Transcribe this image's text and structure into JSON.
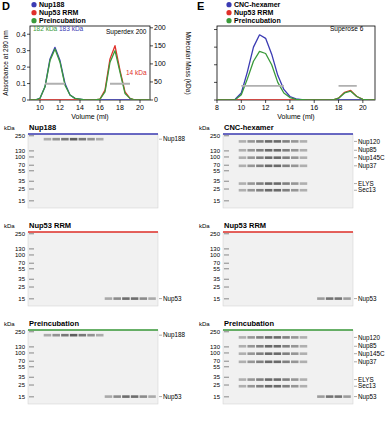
{
  "chart_data": [
    {
      "type": "line",
      "title": "D",
      "x_label": "Volume (ml)",
      "y_label": "Absorbance at 280 nm",
      "y2_label": "Molecular Mass (kDa)",
      "legend": "upper left",
      "x": [
        9,
        9.5,
        10,
        10.5,
        11,
        11.5,
        12,
        12.5,
        13,
        13.5,
        14,
        14.5,
        15,
        15.5,
        16,
        16.5,
        17,
        17.5,
        18,
        18.5,
        19,
        19.5,
        20,
        20.5,
        21
      ],
      "xlim": [
        9,
        21
      ],
      "xticks": [
        10,
        12,
        14,
        16,
        18,
        20
      ],
      "ylim": [
        0,
        0.45
      ],
      "yticks": [
        0,
        0.1,
        0.2,
        0.3,
        0.4
      ],
      "y2lim": [
        0,
        205
      ],
      "y2ticks": [
        0,
        50,
        100,
        150,
        200
      ],
      "series": [
        {
          "name": "Nup188",
          "color": "#3b3bb3",
          "values": [
            0,
            0,
            0.01,
            0.08,
            0.25,
            0.32,
            0.24,
            0.1,
            0.03,
            0.01,
            0.005,
            0,
            0,
            0,
            0,
            0,
            0,
            0,
            0,
            0,
            0,
            0,
            0,
            0,
            0
          ]
        },
        {
          "name": "Nup53 RRM",
          "color": "#e0302a",
          "values": [
            0,
            0,
            0,
            0,
            0,
            0,
            0,
            0,
            0,
            0,
            0,
            0,
            0,
            0,
            0.005,
            0.06,
            0.25,
            0.33,
            0.18,
            0.05,
            0.01,
            0,
            0,
            0,
            0
          ]
        },
        {
          "name": "Preincubation",
          "color": "#3a9a3a",
          "values": [
            0,
            0,
            0.01,
            0.08,
            0.24,
            0.31,
            0.23,
            0.09,
            0.03,
            0.01,
            0.005,
            0,
            0,
            0,
            0.005,
            0.05,
            0.23,
            0.3,
            0.17,
            0.04,
            0.01,
            0,
            0,
            0,
            0
          ]
        },
        {
          "color": "#b0b0b0",
          "axis": "y2",
          "values": [
            null,
            null,
            null,
            45,
            45,
            45,
            45,
            45,
            null,
            null,
            null,
            null,
            null,
            null,
            null,
            null,
            45,
            45,
            45,
            45,
            45,
            null,
            null,
            null,
            null
          ]
        }
      ],
      "annotations": [
        {
          "text": "182 kDa",
          "x": 9.3,
          "y": 0.42,
          "color": "#3a9a3a"
        },
        {
          "text": "183 kDa",
          "x": 11.9,
          "y": 0.42,
          "color": "#3b3bb3"
        },
        {
          "text": "14 kDa",
          "x": 18.6,
          "y": 0.15,
          "color": "#e0302a"
        },
        {
          "text": "Superdex 200",
          "x": 16.6,
          "y": 0.4,
          "color": "#000000"
        }
      ]
    },
    {
      "type": "line",
      "title": "E",
      "x_label": "Volume (ml)",
      "legend": "upper left",
      "tick_labels": "x",
      "x": [
        8,
        8.5,
        9,
        9.5,
        10,
        10.5,
        11,
        11.5,
        12,
        12.5,
        13,
        13.5,
        14,
        14.5,
        15,
        15.5,
        16,
        16.5,
        17,
        17.5,
        18,
        18.5,
        19,
        19.5,
        20,
        20.5,
        21
      ],
      "xlim": [
        8,
        21
      ],
      "xticks": [
        8,
        10,
        12,
        14,
        16,
        18,
        20
      ],
      "ylim": [
        0,
        2.1
      ],
      "yticks": [
        0,
        0.5,
        1,
        1.5,
        2
      ],
      "series": [
        {
          "name": "CNC-hexamer",
          "color": "#3b3bb3",
          "values": [
            0,
            0,
            0,
            0.02,
            0.2,
            0.8,
            1.5,
            1.85,
            1.75,
            1.3,
            0.7,
            0.3,
            0.1,
            0.03,
            0.01,
            0,
            0,
            0,
            0,
            0,
            0,
            0,
            0,
            0,
            0,
            0,
            0
          ]
        },
        {
          "name": "Nup53 RRM",
          "color": "#e0302a",
          "values": [
            0,
            0,
            0,
            0,
            0,
            0,
            0,
            0,
            0,
            0,
            0,
            0,
            0,
            0,
            0,
            0,
            0,
            0,
            0,
            0,
            0.05,
            0.22,
            0.27,
            0.1,
            0.02,
            0,
            0
          ]
        },
        {
          "name": "Preincubation",
          "color": "#3a9a3a",
          "values": [
            0,
            0,
            0,
            0.01,
            0.15,
            0.6,
            1.1,
            1.38,
            1.32,
            1.0,
            0.5,
            0.2,
            0.07,
            0.02,
            0.01,
            0,
            0,
            0,
            0,
            0,
            0.05,
            0.2,
            0.25,
            0.1,
            0.02,
            0,
            0
          ]
        },
        {
          "color": "#b0b0b0",
          "values": [
            null,
            null,
            null,
            null,
            0.4,
            0.4,
            0.4,
            0.4,
            0.4,
            0.4,
            0.4,
            0.4,
            null,
            null,
            null,
            null,
            null,
            null,
            null,
            null,
            0.4,
            0.4,
            0.4,
            0.4,
            null,
            null,
            null
          ]
        }
      ],
      "annotations": [
        {
          "text": "Superose 6",
          "x": 17.3,
          "y": 1.95,
          "color": "#000000"
        }
      ]
    }
  ],
  "gel_panels": [
    [
      {
        "title": "Nup188",
        "unit": "kDa",
        "markers": [
          250,
          130,
          100,
          70,
          55,
          35,
          25,
          15
        ],
        "bands": [
          "Nup188"
        ],
        "color": "#3b3bb3"
      },
      {
        "title": "Nup53 RRM",
        "unit": "kDa",
        "markers": [
          250,
          130,
          100,
          70,
          55,
          35,
          25,
          15
        ],
        "bands": [
          "Nup53"
        ],
        "color": "#e0302a"
      },
      {
        "title": "Preincubation",
        "unit": "kDa",
        "markers": [
          250,
          130,
          100,
          70,
          55,
          35,
          25,
          15
        ],
        "bands": [
          "Nup188",
          "Nup53"
        ],
        "color": "#3a9a3a"
      }
    ],
    [
      {
        "title": "CNC-hexamer",
        "unit": "kDa",
        "markers": [
          250,
          130,
          100,
          70,
          55,
          35,
          25,
          15
        ],
        "bands": [
          "Nup120",
          "Nup85",
          "Nup145C",
          "Nup37",
          "ELYS",
          "Sec13"
        ],
        "color": "#3b3bb3"
      },
      {
        "title": "Nup53 RRM",
        "unit": "kDa",
        "markers": [
          250,
          130,
          100,
          70,
          55,
          35,
          25,
          15
        ],
        "bands": [
          "Nup53"
        ],
        "color": "#e0302a"
      },
      {
        "title": "Preincubation",
        "unit": "kDa",
        "markers": [
          250,
          130,
          100,
          70,
          55,
          35,
          25,
          15
        ],
        "bands": [
          "Nup120",
          "Nup85",
          "Nup145C",
          "Nup37",
          "ELYS",
          "Sec13",
          "Nup53"
        ],
        "color": "#3a9a3a"
      }
    ]
  ]
}
